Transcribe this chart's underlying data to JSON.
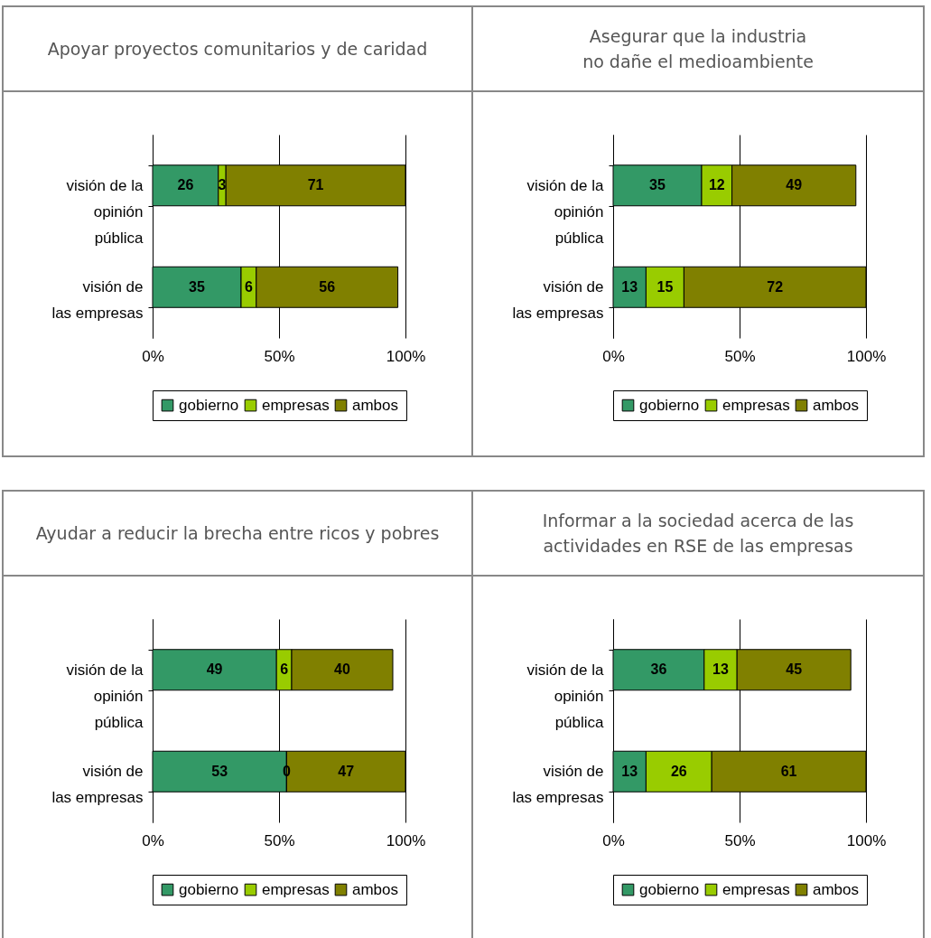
{
  "chart_data": [
    {
      "type": "bar",
      "orientation": "horizontal",
      "stacked": true,
      "title": "Apoyar proyectos comunitarios y de caridad",
      "categories": [
        "visión de la opinión pública",
        "visión de las empresas"
      ],
      "series": [
        {
          "name": "gobierno",
          "color": "#339966",
          "values": [
            26,
            35
          ]
        },
        {
          "name": "empresas",
          "color": "#99cc00",
          "values": [
            3,
            6
          ]
        },
        {
          "name": "ambos",
          "color": "#808000",
          "values": [
            71,
            56
          ]
        }
      ],
      "xlim": [
        0,
        100
      ],
      "xticks": [
        {
          "value": 0,
          "label": "0%"
        },
        {
          "value": 50,
          "label": "50%"
        },
        {
          "value": 100,
          "label": "100%"
        }
      ],
      "grid": "x",
      "data_labels": true,
      "legend": "bottom"
    },
    {
      "type": "bar",
      "orientation": "horizontal",
      "stacked": true,
      "title": "Asegurar que la industria no dañe el medioambiente",
      "categories": [
        "visión de la opinión pública",
        "visión de las empresas"
      ],
      "series": [
        {
          "name": "gobierno",
          "color": "#339966",
          "values": [
            35,
            13
          ]
        },
        {
          "name": "empresas",
          "color": "#99cc00",
          "values": [
            12,
            15
          ]
        },
        {
          "name": "ambos",
          "color": "#808000",
          "values": [
            49,
            72
          ]
        }
      ],
      "xlim": [
        0,
        100
      ],
      "xticks": [
        {
          "value": 0,
          "label": "0%"
        },
        {
          "value": 50,
          "label": "50%"
        },
        {
          "value": 100,
          "label": "100%"
        }
      ],
      "grid": "x",
      "data_labels": true,
      "legend": "bottom"
    },
    {
      "type": "bar",
      "orientation": "horizontal",
      "stacked": true,
      "title": "Ayudar a reducir la brecha entre ricos y pobres",
      "categories": [
        "visión de la opinión pública",
        "visión de las empresas"
      ],
      "series": [
        {
          "name": "gobierno",
          "color": "#339966",
          "values": [
            49,
            53
          ],
          "value_labels": [
            "49",
            "53"
          ]
        },
        {
          "name": "empresas",
          "color": "#99cc00",
          "values": [
            6,
            0
          ],
          "value_labels": [
            "6",
            null
          ]
        },
        {
          "name": "ambos",
          "color": "#808000",
          "values": [
            40,
            47
          ],
          "value_labels": [
            "40",
            "47"
          ]
        }
      ],
      "annotations": [
        {
          "text": "0",
          "x": 53,
          "y": "visión de las empresas"
        }
      ],
      "xlim": [
        0,
        100
      ],
      "xticks": [
        {
          "value": 0,
          "label": "0%"
        },
        {
          "value": 50,
          "label": "50%"
        },
        {
          "value": 100,
          "label": "100%"
        }
      ],
      "grid": "x",
      "legend": "bottom"
    },
    {
      "type": "bar",
      "orientation": "horizontal",
      "stacked": true,
      "title": "Informar a la sociedad acerca de las actividades en RSE de las empresas",
      "categories": [
        "visión de la opinión pública",
        "visión de las empresas"
      ],
      "series": [
        {
          "name": "gobierno",
          "color": "#339966",
          "values": [
            36,
            13
          ]
        },
        {
          "name": "empresas",
          "color": "#99cc00",
          "values": [
            13,
            26
          ]
        },
        {
          "name": "ambos",
          "color": "#808000",
          "values": [
            45,
            61
          ]
        }
      ],
      "xlim": [
        0,
        100
      ],
      "xticks": [
        {
          "value": 0,
          "label": "0%"
        },
        {
          "value": 50,
          "label": "50%"
        },
        {
          "value": 100,
          "label": "100%"
        }
      ],
      "grid": "x",
      "data_labels": true,
      "legend": "bottom"
    }
  ]
}
